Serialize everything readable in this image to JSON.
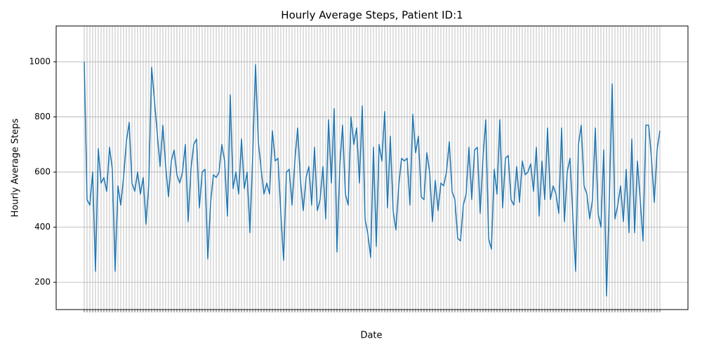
{
  "chart_data": {
    "type": "line",
    "title": "Hourly Average Steps, Patient ID:1",
    "x_label": "Date",
    "y_label": "Hourly Average Steps",
    "series": [
      {
        "name": "Hourly Average Steps",
        "color": "#1f77b4",
        "values": [
          1000,
          500,
          480,
          600,
          240,
          685,
          560,
          580,
          530,
          690,
          610,
          240,
          550,
          480,
          580,
          710,
          780,
          560,
          530,
          600,
          520,
          580,
          410,
          560,
          980,
          860,
          740,
          620,
          770,
          620,
          510,
          640,
          680,
          590,
          560,
          600,
          700,
          420,
          610,
          700,
          720,
          470,
          600,
          610,
          285,
          490,
          590,
          580,
          600,
          700,
          640,
          440,
          880,
          540,
          600,
          520,
          720,
          540,
          600,
          380,
          660,
          990,
          710,
          610,
          520,
          560,
          520,
          750,
          640,
          650,
          450,
          280,
          600,
          610,
          480,
          640,
          760,
          570,
          460,
          580,
          620,
          480,
          690,
          460,
          500,
          620,
          430,
          790,
          560,
          830,
          310,
          620,
          770,
          520,
          480,
          800,
          700,
          760,
          560,
          840,
          430,
          375,
          290,
          690,
          330,
          700,
          640,
          820,
          470,
          730,
          460,
          390,
          550,
          650,
          640,
          650,
          480,
          810,
          670,
          730,
          510,
          500,
          670,
          600,
          420,
          570,
          460,
          560,
          550,
          600,
          710,
          530,
          500,
          360,
          350,
          480,
          520,
          690,
          500,
          680,
          690,
          450,
          650,
          790,
          360,
          320,
          610,
          520,
          790,
          470,
          650,
          660,
          500,
          480,
          620,
          490,
          640,
          590,
          600,
          630,
          530,
          690,
          440,
          640,
          500,
          760,
          500,
          550,
          520,
          450,
          760,
          420,
          600,
          650,
          440,
          240,
          700,
          770,
          550,
          520,
          430,
          500,
          760,
          450,
          400,
          680,
          150,
          500,
          920,
          430,
          480,
          550,
          420,
          610,
          380,
          720,
          380,
          640,
          500,
          350,
          770,
          770,
          650,
          490,
          680,
          750
        ]
      }
    ],
    "ylim": [
      101,
      1130
    ],
    "yticks": [
      200,
      400,
      600,
      800,
      1000
    ],
    "grid": true
  }
}
